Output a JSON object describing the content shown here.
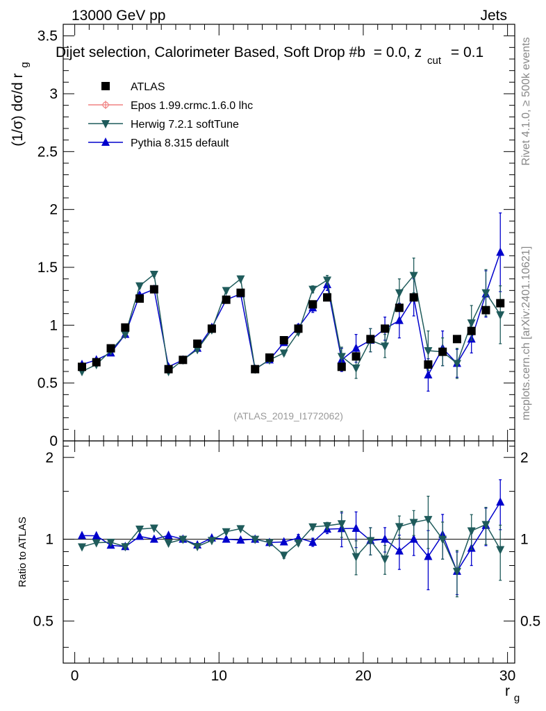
{
  "header": {
    "left": "13000 GeV pp",
    "right": "Jets"
  },
  "side_texts": {
    "rivet": "Rivet 4.1.0, ≥ 500k events",
    "mcplots": "mcplots.cern.ch [arXiv:2401.10621]"
  },
  "chart_data": {
    "type": "scatter",
    "title": "Dijet selection, Calorimeter Based, Soft Drop #b = 0.0, z_cut = 0.1",
    "title_main": "Dijet selection, Calorimeter Based, Soft Drop #b",
    "title_eq": "= 0.0, z",
    "title_sub": "cut",
    "title_tail": "= 0.1",
    "watermark": "(ATLAS_2019_I1772062)",
    "xlabel": "r",
    "xlabel_sub": "g",
    "ylabel_main": "(1/σ) dσ/d r",
    "ylabel_sub": "g",
    "ylabel_ratio": "Ratio to ATLAS",
    "xlim": [
      -0.8,
      30.5
    ],
    "ylim": [
      0,
      3.6
    ],
    "ratio_ylim": [
      0.35,
      2.3
    ],
    "x_ticks": [
      "0",
      "10",
      "20",
      "30"
    ],
    "y_ticks": [
      "0",
      "0.5",
      "1",
      "1.5",
      "2",
      "2.5",
      "3",
      "3.5"
    ],
    "ratio_ticks": [
      "0.5",
      "1",
      "2"
    ],
    "x": [
      0.5,
      1.5,
      2.5,
      3.5,
      4.5,
      5.5,
      6.5,
      7.5,
      8.5,
      9.5,
      10.5,
      11.5,
      12.5,
      13.5,
      14.5,
      15.5,
      16.5,
      17.5,
      18.5,
      19.5,
      20.5,
      21.5,
      22.5,
      23.5,
      24.5,
      25.5,
      26.5,
      27.5,
      28.5,
      29.5
    ],
    "series": [
      {
        "name": "ATLAS",
        "color": "#000000",
        "marker": "square",
        "values": [
          0.64,
          0.68,
          0.8,
          0.98,
          1.23,
          1.31,
          0.62,
          0.7,
          0.84,
          0.97,
          1.22,
          1.28,
          0.62,
          0.72,
          0.87,
          0.97,
          1.18,
          1.24,
          0.64,
          0.73,
          0.88,
          0.97,
          1.15,
          1.24,
          0.66,
          0.77,
          0.88,
          0.95,
          1.13,
          1.19
        ]
      },
      {
        "name": "Epos 1.99.crmc.1.6.0 lhc",
        "color": "#f08080",
        "marker": "open-cross",
        "values": []
      },
      {
        "name": "Herwig 7.2.1 softTune",
        "color": "#1f5b5b",
        "marker": "triangle-down",
        "values": [
          0.6,
          0.66,
          0.78,
          0.92,
          1.34,
          1.44,
          0.6,
          0.7,
          0.79,
          0.96,
          1.3,
          1.4,
          0.62,
          0.7,
          0.76,
          0.94,
          1.31,
          1.39,
          0.73,
          0.63,
          0.87,
          0.82,
          1.28,
          1.43,
          0.78,
          0.77,
          0.67,
          1.02,
          1.28,
          1.09
        ],
        "errors": [
          0.01,
          0.01,
          0.01,
          0.01,
          0.02,
          0.02,
          0.01,
          0.01,
          0.01,
          0.01,
          0.02,
          0.02,
          0.01,
          0.01,
          0.02,
          0.02,
          0.03,
          0.04,
          0.08,
          0.09,
          0.1,
          0.1,
          0.12,
          0.15,
          0.17,
          0.12,
          0.13,
          0.15,
          0.2,
          0.25
        ]
      },
      {
        "name": "Pythia 8.315 default",
        "color": "#0000cc",
        "marker": "triangle-up",
        "values": [
          0.66,
          0.7,
          0.76,
          0.92,
          1.26,
          1.31,
          0.64,
          0.7,
          0.8,
          0.98,
          1.22,
          1.27,
          0.62,
          0.7,
          0.85,
          0.98,
          1.15,
          1.35,
          0.7,
          0.8,
          0.87,
          0.97,
          1.04,
          1.24,
          0.57,
          0.8,
          0.67,
          0.88,
          1.27,
          1.63
        ],
        "errors": [
          0.01,
          0.01,
          0.01,
          0.01,
          0.02,
          0.02,
          0.01,
          0.01,
          0.01,
          0.01,
          0.02,
          0.02,
          0.01,
          0.01,
          0.02,
          0.03,
          0.04,
          0.05,
          0.1,
          0.12,
          0.1,
          0.1,
          0.15,
          0.16,
          0.14,
          0.15,
          0.12,
          0.12,
          0.2,
          0.34
        ]
      }
    ]
  }
}
